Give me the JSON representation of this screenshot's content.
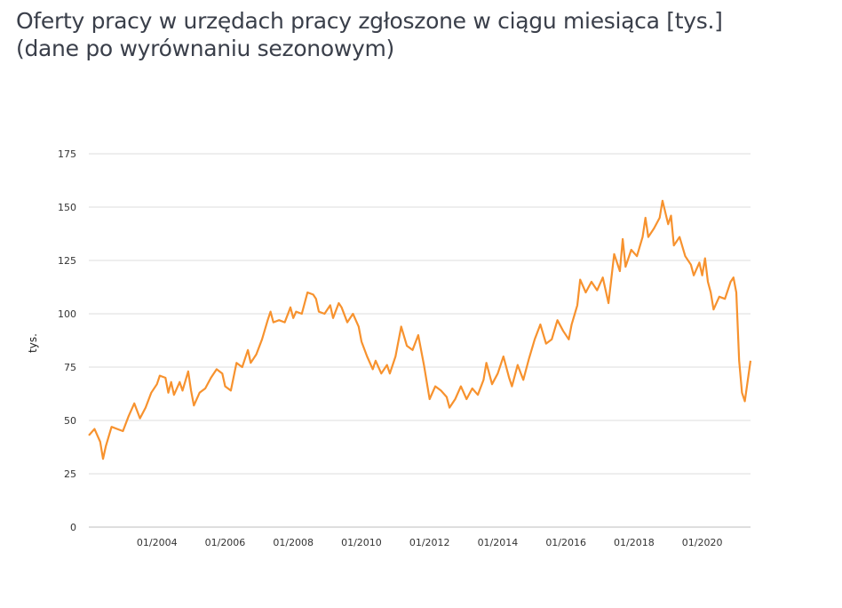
{
  "title_line1": "Oferty pracy w urzędach pracy zgłoszone w ciągu miesiąca [tys.]",
  "title_line2": "(dane po wyrównaniu sezonowym)",
  "colors": {
    "line": "#f7922e",
    "grid": "#dcdcdc",
    "axis": "#bdbdbd"
  },
  "chart_data": {
    "type": "line",
    "title": "Oferty pracy w urzędach pracy zgłoszone w ciągu miesiąca [tys.] (dane po wyrównaniu sezonowym)",
    "xlabel": "",
    "ylabel": "tys.",
    "ylim": [
      0,
      175
    ],
    "yticks": [
      0,
      25,
      50,
      75,
      100,
      125,
      150,
      175
    ],
    "xlim": [
      "2002-01",
      "2020-06"
    ],
    "xticks": [
      "01/2004",
      "01/2006",
      "01/2008",
      "01/2010",
      "01/2012",
      "01/2014",
      "01/2016",
      "01/2018",
      "01/2020"
    ],
    "grid": "horizontal",
    "legend": "none",
    "series": [
      {
        "name": "",
        "points": [
          [
            "2002-01",
            43
          ],
          [
            "2002-03",
            46
          ],
          [
            "2002-05",
            40
          ],
          [
            "2002-06",
            32
          ],
          [
            "2002-07",
            38
          ],
          [
            "2002-09",
            47
          ],
          [
            "2002-11",
            46
          ],
          [
            "2003-01",
            45
          ],
          [
            "2003-03",
            52
          ],
          [
            "2003-05",
            58
          ],
          [
            "2003-07",
            51
          ],
          [
            "2003-09",
            56
          ],
          [
            "2003-11",
            63
          ],
          [
            "2004-01",
            67
          ],
          [
            "2004-02",
            71
          ],
          [
            "2004-04",
            70
          ],
          [
            "2004-05",
            63
          ],
          [
            "2004-06",
            68
          ],
          [
            "2004-07",
            62
          ],
          [
            "2004-09",
            68
          ],
          [
            "2004-10",
            64
          ],
          [
            "2004-12",
            73
          ],
          [
            "2005-01",
            64
          ],
          [
            "2005-02",
            57
          ],
          [
            "2005-04",
            63
          ],
          [
            "2005-06",
            65
          ],
          [
            "2005-08",
            70
          ],
          [
            "2005-10",
            74
          ],
          [
            "2005-12",
            72
          ],
          [
            "2006-01",
            66
          ],
          [
            "2006-03",
            64
          ],
          [
            "2006-05",
            77
          ],
          [
            "2006-07",
            75
          ],
          [
            "2006-09",
            83
          ],
          [
            "2006-10",
            77
          ],
          [
            "2006-12",
            81
          ],
          [
            "2007-02",
            88
          ],
          [
            "2007-04",
            97
          ],
          [
            "2007-05",
            101
          ],
          [
            "2007-06",
            96
          ],
          [
            "2007-08",
            97
          ],
          [
            "2007-10",
            96
          ],
          [
            "2007-12",
            103
          ],
          [
            "2008-01",
            98
          ],
          [
            "2008-02",
            101
          ],
          [
            "2008-04",
            100
          ],
          [
            "2008-06",
            110
          ],
          [
            "2008-08",
            109
          ],
          [
            "2008-09",
            107
          ],
          [
            "2008-10",
            101
          ],
          [
            "2008-12",
            100
          ],
          [
            "2009-02",
            104
          ],
          [
            "2009-03",
            98
          ],
          [
            "2009-05",
            105
          ],
          [
            "2009-06",
            103
          ],
          [
            "2009-08",
            96
          ],
          [
            "2009-10",
            100
          ],
          [
            "2009-12",
            94
          ],
          [
            "2010-01",
            87
          ],
          [
            "2010-03",
            80
          ],
          [
            "2010-05",
            74
          ],
          [
            "2010-06",
            78
          ],
          [
            "2010-08",
            72
          ],
          [
            "2010-10",
            76
          ],
          [
            "2010-11",
            72
          ],
          [
            "2011-01",
            80
          ],
          [
            "2011-03",
            94
          ],
          [
            "2011-05",
            85
          ],
          [
            "2011-07",
            83
          ],
          [
            "2011-09",
            90
          ],
          [
            "2011-11",
            76
          ],
          [
            "2012-01",
            60
          ],
          [
            "2012-03",
            66
          ],
          [
            "2012-05",
            64
          ],
          [
            "2012-07",
            61
          ],
          [
            "2012-08",
            56
          ],
          [
            "2012-10",
            60
          ],
          [
            "2012-12",
            66
          ],
          [
            "2013-02",
            60
          ],
          [
            "2013-04",
            65
          ],
          [
            "2013-06",
            62
          ],
          [
            "2013-08",
            69
          ],
          [
            "2013-09",
            77
          ],
          [
            "2013-11",
            67
          ],
          [
            "2014-01",
            72
          ],
          [
            "2014-03",
            80
          ],
          [
            "2014-05",
            70
          ],
          [
            "2014-06",
            66
          ],
          [
            "2014-08",
            76
          ],
          [
            "2014-10",
            69
          ],
          [
            "2014-12",
            79
          ],
          [
            "2015-02",
            88
          ],
          [
            "2015-04",
            95
          ],
          [
            "2015-06",
            86
          ],
          [
            "2015-08",
            88
          ],
          [
            "2015-10",
            97
          ],
          [
            "2015-12",
            92
          ],
          [
            "2016-02",
            88
          ],
          [
            "2016-03",
            95
          ],
          [
            "2016-05",
            104
          ],
          [
            "2016-06",
            116
          ],
          [
            "2016-08",
            110
          ],
          [
            "2016-10",
            115
          ],
          [
            "2016-12",
            111
          ],
          [
            "2017-02",
            117
          ],
          [
            "2017-04",
            105
          ],
          [
            "2017-06",
            128
          ],
          [
            "2017-08",
            120
          ],
          [
            "2017-09",
            135
          ],
          [
            "2017-10",
            122
          ],
          [
            "2017-12",
            130
          ],
          [
            "2018-02",
            127
          ],
          [
            "2018-04",
            136
          ],
          [
            "2018-05",
            145
          ],
          [
            "2018-06",
            136
          ],
          [
            "2018-08",
            140
          ],
          [
            "2018-10",
            145
          ],
          [
            "2018-11",
            153
          ],
          [
            "2019-01",
            142
          ],
          [
            "2019-02",
            146
          ],
          [
            "2019-03",
            132
          ],
          [
            "2019-05",
            136
          ],
          [
            "2019-07",
            127
          ],
          [
            "2019-09",
            123
          ],
          [
            "2019-10",
            118
          ],
          [
            "2019-12",
            124
          ],
          [
            "2020-01",
            118
          ],
          [
            "2020-02",
            126
          ],
          [
            "2020-03",
            115
          ],
          [
            "2020-04",
            110
          ],
          [
            "2020-05",
            102
          ],
          [
            "2020-07",
            108
          ],
          [
            "2020-09",
            107
          ],
          [
            "2020-11",
            115
          ],
          [
            "2020-12",
            117
          ],
          [
            "2021-01",
            110
          ],
          [
            "2021-02",
            78
          ],
          [
            "2021-03",
            63
          ],
          [
            "2021-04",
            59
          ],
          [
            "2021-06",
            78
          ]
        ]
      }
    ]
  }
}
